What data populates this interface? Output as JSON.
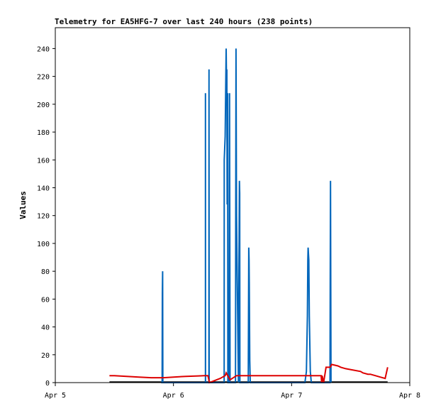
{
  "chart_data": {
    "type": "line",
    "title": "Telemetry for EA5HFG-7 over last 240 hours (238 points)",
    "xlabel": "",
    "ylabel": "Values",
    "ylim": [
      0,
      255
    ],
    "yticks": [
      0,
      20,
      40,
      60,
      80,
      100,
      120,
      140,
      160,
      180,
      200,
      220,
      240
    ],
    "xlim": [
      0,
      72
    ],
    "xticks": [
      {
        "x": 0,
        "label": "Apr 5"
      },
      {
        "x": 24,
        "label": "Apr 6"
      },
      {
        "x": 48,
        "label": "Apr 7"
      },
      {
        "x": 72,
        "label": "Apr 8"
      }
    ],
    "x_units": "hours since Apr 5 00:00",
    "grid": false,
    "legend": "none",
    "series": [
      {
        "color": "#0066bb",
        "x": [
          21.5,
          21.7,
          21.75,
          21.8,
          21.85,
          21.9,
          30.5,
          30.5,
          30.52,
          30.6,
          31.2,
          31.22,
          31.25,
          31.3,
          34.3,
          34.32,
          34.5,
          34.6,
          34.7,
          34.8,
          34.85,
          34.9,
          35.0,
          35.05,
          35.1,
          35.15,
          35.2,
          35.3,
          35.4,
          35.5,
          36.6,
          36.65,
          36.7,
          36.8,
          37.2,
          37.25,
          37.4,
          37.45,
          37.5,
          39.2,
          39.3,
          39.35,
          39.4,
          39.5,
          39.6,
          41.0,
          50.7,
          51.0,
          51.2,
          51.3,
          51.35,
          51.5,
          51.6,
          51.8,
          52.0,
          55.8,
          55.85,
          55.9,
          56.0
        ],
        "y": [
          0,
          0,
          64,
          80,
          0,
          0,
          0,
          208,
          0,
          0,
          0,
          225,
          0,
          0,
          0,
          160,
          177,
          208,
          240,
          208,
          225,
          128,
          208,
          0,
          0,
          0,
          0,
          0,
          208,
          0,
          0,
          112,
          240,
          120,
          0,
          48,
          145,
          136,
          0,
          0,
          97,
          88,
          72,
          16,
          0,
          0,
          0,
          8,
          48,
          88,
          97,
          88,
          48,
          8,
          0,
          0,
          72,
          145,
          0
        ]
      },
      {
        "color": "#dd0000",
        "x": [
          11.0,
          12.0,
          14.5,
          17.0,
          19.5,
          21.7,
          22.0,
          24.0,
          26.5,
          29.0,
          30.2,
          30.4,
          31.0,
          31.3,
          33.5,
          34.5,
          34.7,
          35.5,
          36.8,
          54.0,
          54.1,
          54.2,
          54.5,
          55.0,
          55.8,
          56.0,
          56.1,
          56.2,
          57.4,
          58.0,
          59.0,
          62.0,
          62.5,
          63.5,
          64.0,
          65.0,
          66.0,
          67.0,
          67.5
        ],
        "y": [
          5,
          5,
          4.5,
          4,
          3.5,
          3.5,
          3.5,
          4,
          4.5,
          4.8,
          5,
          5,
          5,
          0,
          3,
          5,
          7,
          2,
          5,
          5,
          0,
          5,
          0,
          11,
          11,
          12,
          13,
          13,
          12,
          11,
          10,
          8,
          7,
          6,
          6,
          5,
          4,
          3,
          11
        ]
      }
    ]
  }
}
